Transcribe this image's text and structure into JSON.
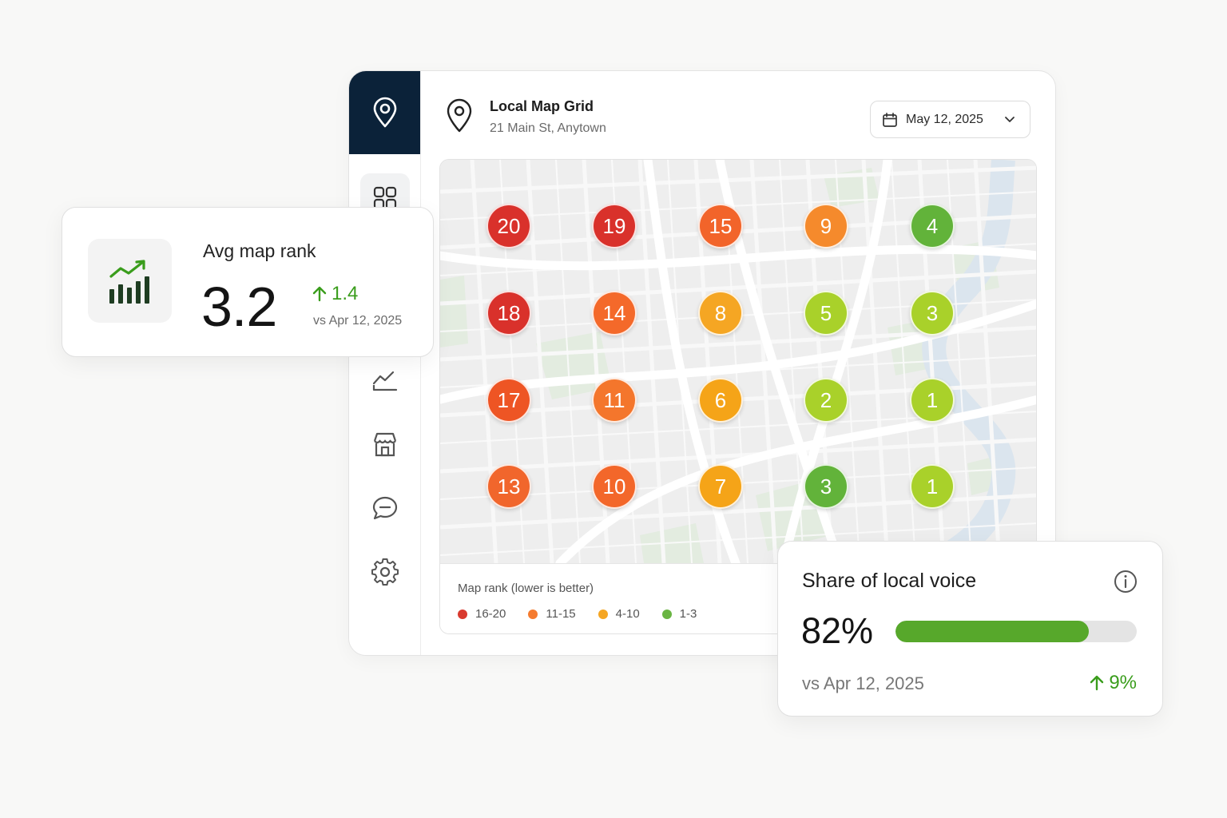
{
  "header": {
    "title": "Local Map Grid",
    "address": "21 Main St, Anytown",
    "date": "May 12, 2025"
  },
  "sidebar": {
    "items": [
      {
        "icon": "map-pin-icon",
        "active": false
      },
      {
        "icon": "grid-icon",
        "active": true
      },
      {
        "icon": "trend-chart-icon",
        "active": false
      },
      {
        "icon": "storefront-icon",
        "active": false
      },
      {
        "icon": "chat-bubble-icon",
        "active": false
      },
      {
        "icon": "gear-icon",
        "active": false
      }
    ]
  },
  "grid": {
    "rows": [
      [
        "20",
        "19",
        "15",
        "9",
        "4"
      ],
      [
        "18",
        "14",
        "8",
        "5",
        "3"
      ],
      [
        "17",
        "11",
        "6",
        "2",
        "1"
      ],
      [
        "13",
        "10",
        "7",
        "3",
        "1"
      ]
    ],
    "colors": [
      [
        "#d9312b",
        "#d9312b",
        "#f2642a",
        "#f58a2c",
        "#62b33a"
      ],
      [
        "#d9312b",
        "#f4692a",
        "#f5a623",
        "#a9d12a",
        "#a9d12a"
      ],
      [
        "#ee5524",
        "#f4762c",
        "#f5a418",
        "#a9d12a",
        "#a9d12a"
      ],
      [
        "#f1662c",
        "#f3672a",
        "#f5a418",
        "#62b33a",
        "#a9d12a"
      ]
    ]
  },
  "legend": {
    "title": "Map rank (lower is better)",
    "items": [
      {
        "label": "16-20",
        "color": "#d93a2f"
      },
      {
        "label": "11-15",
        "color": "#f57b2f"
      },
      {
        "label": "4-10",
        "color": "#f5a623"
      },
      {
        "label": "1-3",
        "color": "#6ab543"
      }
    ]
  },
  "avg_rank": {
    "label": "Avg map rank",
    "value": "3.2",
    "delta": "1.4",
    "compare": "vs Apr 12, 2025"
  },
  "share_of_voice": {
    "title": "Share of local voice",
    "value": "82%",
    "fill_fraction": 0.8,
    "compare": "vs Apr 12, 2025",
    "delta": "9%"
  },
  "colors": {
    "sidebar_dark": "#0b2239",
    "positive": "#3a9d1c",
    "progress": "#57a82b"
  }
}
